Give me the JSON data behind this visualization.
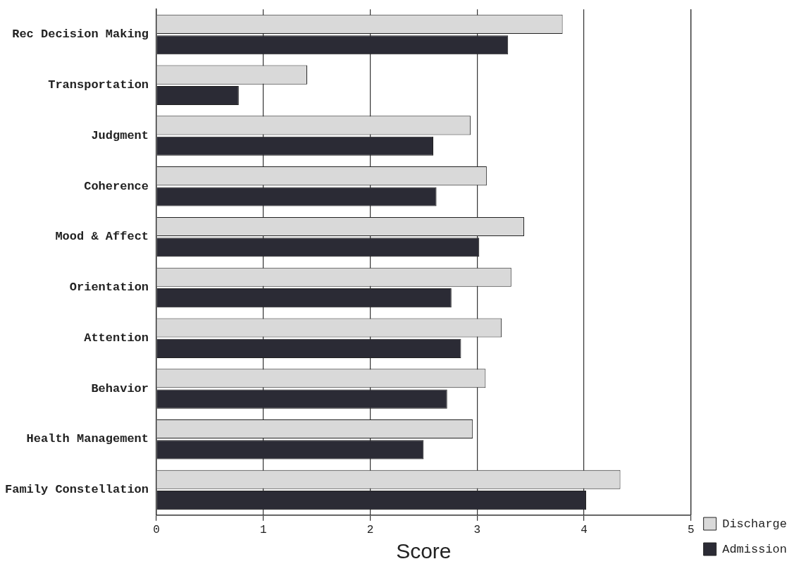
{
  "chart_data": {
    "type": "bar",
    "orientation": "horizontal",
    "xlabel": "Score",
    "categories": [
      "Rec Decision Making",
      "Transportation",
      "Judgment",
      "Coherence",
      "Mood & Affect",
      "Orientation",
      "Attention",
      "Behavior",
      "Health Management",
      "Family Constellation"
    ],
    "series": [
      {
        "name": "Discharge",
        "color": "#d9d9d9",
        "values": [
          3.8,
          1.41,
          2.94,
          3.09,
          3.44,
          3.32,
          3.23,
          3.08,
          2.96,
          4.34
        ]
      },
      {
        "name": "Admission",
        "color": "#2b2b35",
        "values": [
          3.29,
          0.77,
          2.59,
          2.62,
          3.02,
          2.76,
          2.85,
          2.72,
          2.5,
          4.02
        ]
      }
    ],
    "xlim": [
      0,
      5
    ],
    "xticks": [
      0,
      1,
      2,
      3,
      4,
      5
    ],
    "grid": "x",
    "legend": "bottom right"
  }
}
